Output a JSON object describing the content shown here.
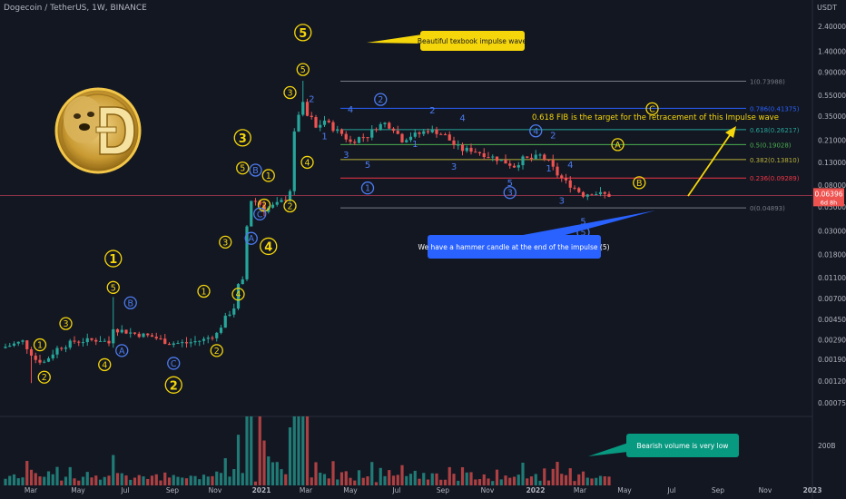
{
  "header": {
    "symbol_line": "Dogecoin / TetherUS, 1W, BINANCE"
  },
  "colors": {
    "background": "#131722",
    "bull": "#26a69a",
    "bear": "#ef5350",
    "wave_yellow": "#f5d60a",
    "wave_blue": "#4c7cf0",
    "fib_0": "#787b86",
    "fib_0236": "#f23645",
    "fib_0382": "#b8b038",
    "fib_05": "#4caf50",
    "fib_0618": "#26a69a",
    "fib_0786": "#2962ff",
    "fib_1": "#787b86",
    "hline": "#b23a55",
    "callout_yellow": "#f5d60a",
    "callout_blue": "#2962ff",
    "callout_green": "#089981",
    "price_tag": "#ef5350"
  },
  "chart_data": {
    "type": "candlestick",
    "title": "Dogecoin / TetherUS, 1W, BINANCE",
    "y_unit_label": "USDT",
    "y_scale": "log",
    "y_ticks": [
      "2.40000",
      "1.40000",
      "0.90000",
      "0.55000",
      "0.35000",
      "0.21000",
      "0.13000",
      "0.08000",
      "0.05000",
      "0.03000",
      "0.01800",
      "0.01100",
      "0.00700",
      "0.00450",
      "0.00290",
      "0.00190",
      "0.00120",
      "0.00075"
    ],
    "x_ticks": [
      "Mar",
      "May",
      "Jul",
      "Sep",
      "Nov",
      "2021",
      "Mar",
      "May",
      "Jul",
      "Sep",
      "Nov",
      "2022",
      "Mar",
      "May",
      "Jul",
      "Sep",
      "Nov",
      "2023"
    ],
    "volume_tick": "200B",
    "current_price": {
      "value": "0.06396",
      "countdown": "6d 8h"
    },
    "fib_levels": [
      {
        "label": "1(0.73988)",
        "level": 1,
        "price": 0.73988
      },
      {
        "label": "0.786(0.41375)",
        "level": 0.786,
        "price": 0.41375
      },
      {
        "label": "0.618(0.26217)",
        "level": 0.618,
        "price": 0.26217
      },
      {
        "label": "0.5(0.19028)",
        "level": 0.5,
        "price": 0.19028
      },
      {
        "label": "0.382(0.13810)",
        "level": 0.382,
        "price": 0.1381
      },
      {
        "label": "0.236(0.09289)",
        "level": 0.236,
        "price": 0.09289
      },
      {
        "label": "0(0.04893)",
        "level": 0,
        "price": 0.04893
      }
    ],
    "annotations": [
      "Beautiful texbook impulse wave",
      "0.618 FIB is the target for the retracement of this Impulse wave",
      "We have a hammer candle at the end of the impulse (5)",
      "Bearish volume is very low"
    ],
    "wave_labels": [
      {
        "text": "5",
        "style": "circle-big",
        "color": "yellow",
        "week": 69,
        "price": 2.1
      },
      {
        "text": "5",
        "style": "circle",
        "color": "yellow",
        "week": 69,
        "price": 0.95
      },
      {
        "text": "3",
        "style": "circle",
        "color": "yellow",
        "week": 66,
        "price": 0.58
      },
      {
        "text": "3",
        "style": "circle-big",
        "color": "yellow",
        "week": 55,
        "price": 0.22
      },
      {
        "text": "5",
        "style": "circle",
        "color": "yellow",
        "week": 55,
        "price": 0.115
      },
      {
        "text": "B",
        "style": "circle",
        "color": "blue",
        "week": 58,
        "price": 0.11
      },
      {
        "text": "1",
        "style": "circle",
        "color": "yellow",
        "week": 61,
        "price": 0.098
      },
      {
        "text": "2",
        "style": "circle",
        "color": "yellow",
        "week": 60,
        "price": 0.052
      },
      {
        "text": "C",
        "style": "circle",
        "color": "blue",
        "week": 59,
        "price": 0.043
      },
      {
        "text": "A",
        "style": "circle",
        "color": "blue",
        "week": 57,
        "price": 0.0255
      },
      {
        "text": "4",
        "style": "circle-big",
        "color": "yellow",
        "week": 61,
        "price": 0.0215
      },
      {
        "text": "3",
        "style": "circle",
        "color": "yellow",
        "week": 51,
        "price": 0.0235
      },
      {
        "text": "1",
        "style": "circle",
        "color": "yellow",
        "week": 46,
        "price": 0.0082
      },
      {
        "text": "4",
        "style": "circle",
        "color": "yellow",
        "week": 54,
        "price": 0.0077
      },
      {
        "text": "2",
        "style": "circle",
        "color": "yellow",
        "week": 49,
        "price": 0.0023
      },
      {
        "text": "1",
        "style": "circle-big",
        "color": "yellow",
        "week": 25,
        "price": 0.0165
      },
      {
        "text": "5",
        "style": "circle",
        "color": "yellow",
        "week": 25,
        "price": 0.0089
      },
      {
        "text": "B",
        "style": "circle",
        "color": "blue",
        "week": 29,
        "price": 0.0064
      },
      {
        "text": "A",
        "style": "circle",
        "color": "blue",
        "week": 27,
        "price": 0.0023
      },
      {
        "text": "3",
        "style": "circle",
        "color": "yellow",
        "week": 14,
        "price": 0.0041
      },
      {
        "text": "4",
        "style": "circle",
        "color": "yellow",
        "week": 23,
        "price": 0.0017
      },
      {
        "text": "1",
        "style": "circle",
        "color": "yellow",
        "week": 8,
        "price": 0.0026
      },
      {
        "text": "2",
        "style": "circle",
        "color": "yellow",
        "week": 9,
        "price": 0.0013
      },
      {
        "text": "C",
        "style": "circle",
        "color": "blue",
        "week": 39,
        "price": 0.00175
      },
      {
        "text": "2",
        "style": "circle-big",
        "color": "yellow",
        "week": 39,
        "price": 0.0011
      },
      {
        "text": "4",
        "style": "circle",
        "color": "yellow",
        "week": 70,
        "price": 0.13
      },
      {
        "text": "2",
        "style": "circle",
        "color": "yellow",
        "week": 66,
        "price": 0.051
      },
      {
        "text": "2",
        "style": "plain",
        "color": "blue",
        "week": 71,
        "price": 0.51
      },
      {
        "text": "1",
        "style": "plain",
        "color": "blue",
        "week": 74,
        "price": 0.23
      },
      {
        "text": "4",
        "style": "plain",
        "color": "blue",
        "week": 80,
        "price": 0.41
      },
      {
        "text": "3",
        "style": "plain",
        "color": "blue",
        "week": 79,
        "price": 0.155
      },
      {
        "text": "5",
        "style": "plain",
        "color": "blue",
        "week": 84,
        "price": 0.125
      },
      {
        "text": "2",
        "style": "circle",
        "color": "blue",
        "week": 87,
        "price": 0.5
      },
      {
        "text": "1",
        "style": "circle",
        "color": "blue",
        "week": 84,
        "price": 0.075
      },
      {
        "text": "1",
        "style": "plain",
        "color": "blue",
        "week": 95,
        "price": 0.195
      },
      {
        "text": "2",
        "style": "plain",
        "color": "blue",
        "week": 99,
        "price": 0.4
      },
      {
        "text": "4",
        "style": "plain",
        "color": "blue",
        "week": 106,
        "price": 0.34
      },
      {
        "text": "3",
        "style": "plain",
        "color": "blue",
        "week": 104,
        "price": 0.12
      },
      {
        "text": "5",
        "style": "plain",
        "color": "blue",
        "week": 117,
        "price": 0.085
      },
      {
        "text": "3",
        "style": "circle",
        "color": "blue",
        "week": 117,
        "price": 0.068
      },
      {
        "text": "4",
        "style": "circle",
        "color": "blue",
        "week": 123,
        "price": 0.255
      },
      {
        "text": "2",
        "style": "plain",
        "color": "blue",
        "week": 127,
        "price": 0.235
      },
      {
        "text": "1",
        "style": "plain",
        "color": "blue",
        "week": 126,
        "price": 0.115
      },
      {
        "text": "4",
        "style": "plain",
        "color": "blue",
        "week": 131,
        "price": 0.125
      },
      {
        "text": "3",
        "style": "plain",
        "color": "blue",
        "week": 129,
        "price": 0.058
      },
      {
        "text": "5",
        "style": "plain",
        "color": "blue",
        "week": 134,
        "price": 0.037
      },
      {
        "text": "5",
        "style": "circle",
        "color": "blue",
        "week": 134,
        "price": 0.029
      },
      {
        "text": "A",
        "style": "circle",
        "color": "yellow",
        "week": 142,
        "price": 0.19
      },
      {
        "text": "B",
        "style": "circle",
        "color": "yellow",
        "week": 147,
        "price": 0.084
      },
      {
        "text": "C",
        "style": "circle",
        "color": "yellow",
        "week": 150,
        "price": 0.41
      }
    ]
  }
}
